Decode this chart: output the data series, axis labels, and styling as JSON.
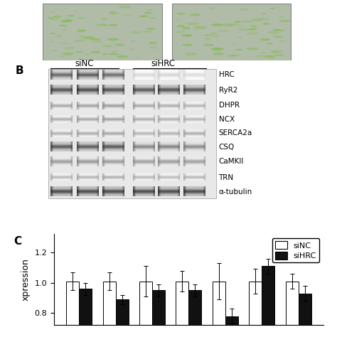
{
  "panel_label_b": "B",
  "panel_label_c": "C",
  "ylabel": "xpression",
  "ylim": [
    0.72,
    1.32
  ],
  "yticks": [
    0.8,
    1.0,
    1.2
  ],
  "ytick_labels": [
    "0.8",
    "1.0",
    "1.2"
  ],
  "siNC_values": [
    1.01,
    1.01,
    1.01,
    1.01,
    1.01,
    1.01,
    1.01
  ],
  "siHRC_values": [
    0.96,
    0.89,
    0.95,
    0.95,
    0.78,
    1.11,
    0.93
  ],
  "siNC_errors": [
    0.06,
    0.06,
    0.1,
    0.07,
    0.12,
    0.08,
    0.05
  ],
  "siHRC_errors": [
    0.04,
    0.03,
    0.04,
    0.04,
    0.05,
    0.05,
    0.05
  ],
  "bar_width": 0.35,
  "siNC_color": "#ffffff",
  "siHRC_color": "#111111",
  "edge_color": "#000000",
  "legend_labels": [
    "siNC",
    "siHRC"
  ],
  "background_color": "#ffffff",
  "protein_labels": [
    "HRC",
    "RyR2",
    "DHPR",
    "NCX",
    "SERCA2a",
    "CSQ",
    "CaMKII",
    "TRN",
    "α-tubulin"
  ],
  "wb_group_labels": [
    "siNC",
    "siHRC"
  ],
  "font_size": 9,
  "legend_font_size": 8,
  "tick_font_size": 8,
  "label_font_size": 9,
  "img_top_color": "#b8c4b0",
  "img_bg_color": "#c4cfc0"
}
